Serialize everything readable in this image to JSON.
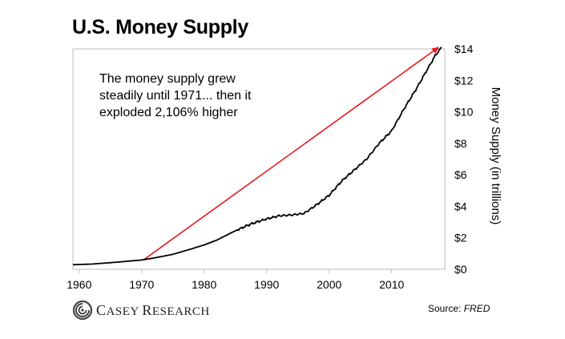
{
  "chart_data": {
    "type": "line",
    "title": "U.S. Money Supply",
    "ylabel": "Money Supply (in trillions)",
    "xlabel": "",
    "xlim": [
      1959,
      2018.5
    ],
    "ylim": [
      0,
      14
    ],
    "x_ticks": [
      1960,
      1970,
      1980,
      1990,
      2000,
      2010
    ],
    "x_tick_labels": [
      "1960",
      "1970",
      "1980",
      "1990",
      "2000",
      "2010"
    ],
    "y_ticks": [
      0,
      2,
      4,
      6,
      8,
      10,
      12,
      14
    ],
    "y_tick_labels": [
      "$0",
      "$2",
      "$4",
      "$6",
      "$8",
      "$10",
      "$12",
      "$14"
    ],
    "grid": false,
    "series": [
      {
        "color": "#000000",
        "x": [
          1959,
          1962,
          1965,
          1968,
          1970,
          1972,
          1975,
          1978,
          1980,
          1982,
          1985,
          1987,
          1988,
          1990,
          1992,
          1994,
          1996,
          1998,
          2000,
          2002,
          2004,
          2006,
          2008,
          2009,
          2010,
          2012,
          2014,
          2016,
          2017,
          2018
        ],
        "y": [
          0.29,
          0.33,
          0.42,
          0.52,
          0.59,
          0.72,
          0.95,
          1.3,
          1.55,
          1.85,
          2.45,
          2.8,
          2.95,
          3.2,
          3.4,
          3.45,
          3.55,
          4.1,
          4.7,
          5.6,
          6.3,
          7.0,
          8.0,
          8.4,
          8.8,
          10.2,
          11.5,
          12.9,
          13.6,
          14.1
        ]
      }
    ],
    "annotation": {
      "lines": [
        "The money supply grew",
        "steadily until 1971... then it",
        "exploded 2,106% higher"
      ],
      "arrow": {
        "color": "#e8161b",
        "from": [
          1970.3,
          0.6
        ],
        "to": [
          2017.5,
          14.1
        ]
      }
    }
  },
  "footer": {
    "logo_name": "casey-research",
    "logo_first": "C",
    "logo_rest": "ASEY ",
    "logo_first2": "R",
    "logo_rest2": "ESEARCH",
    "source_label": "Source: ",
    "source_name": "FRED"
  }
}
